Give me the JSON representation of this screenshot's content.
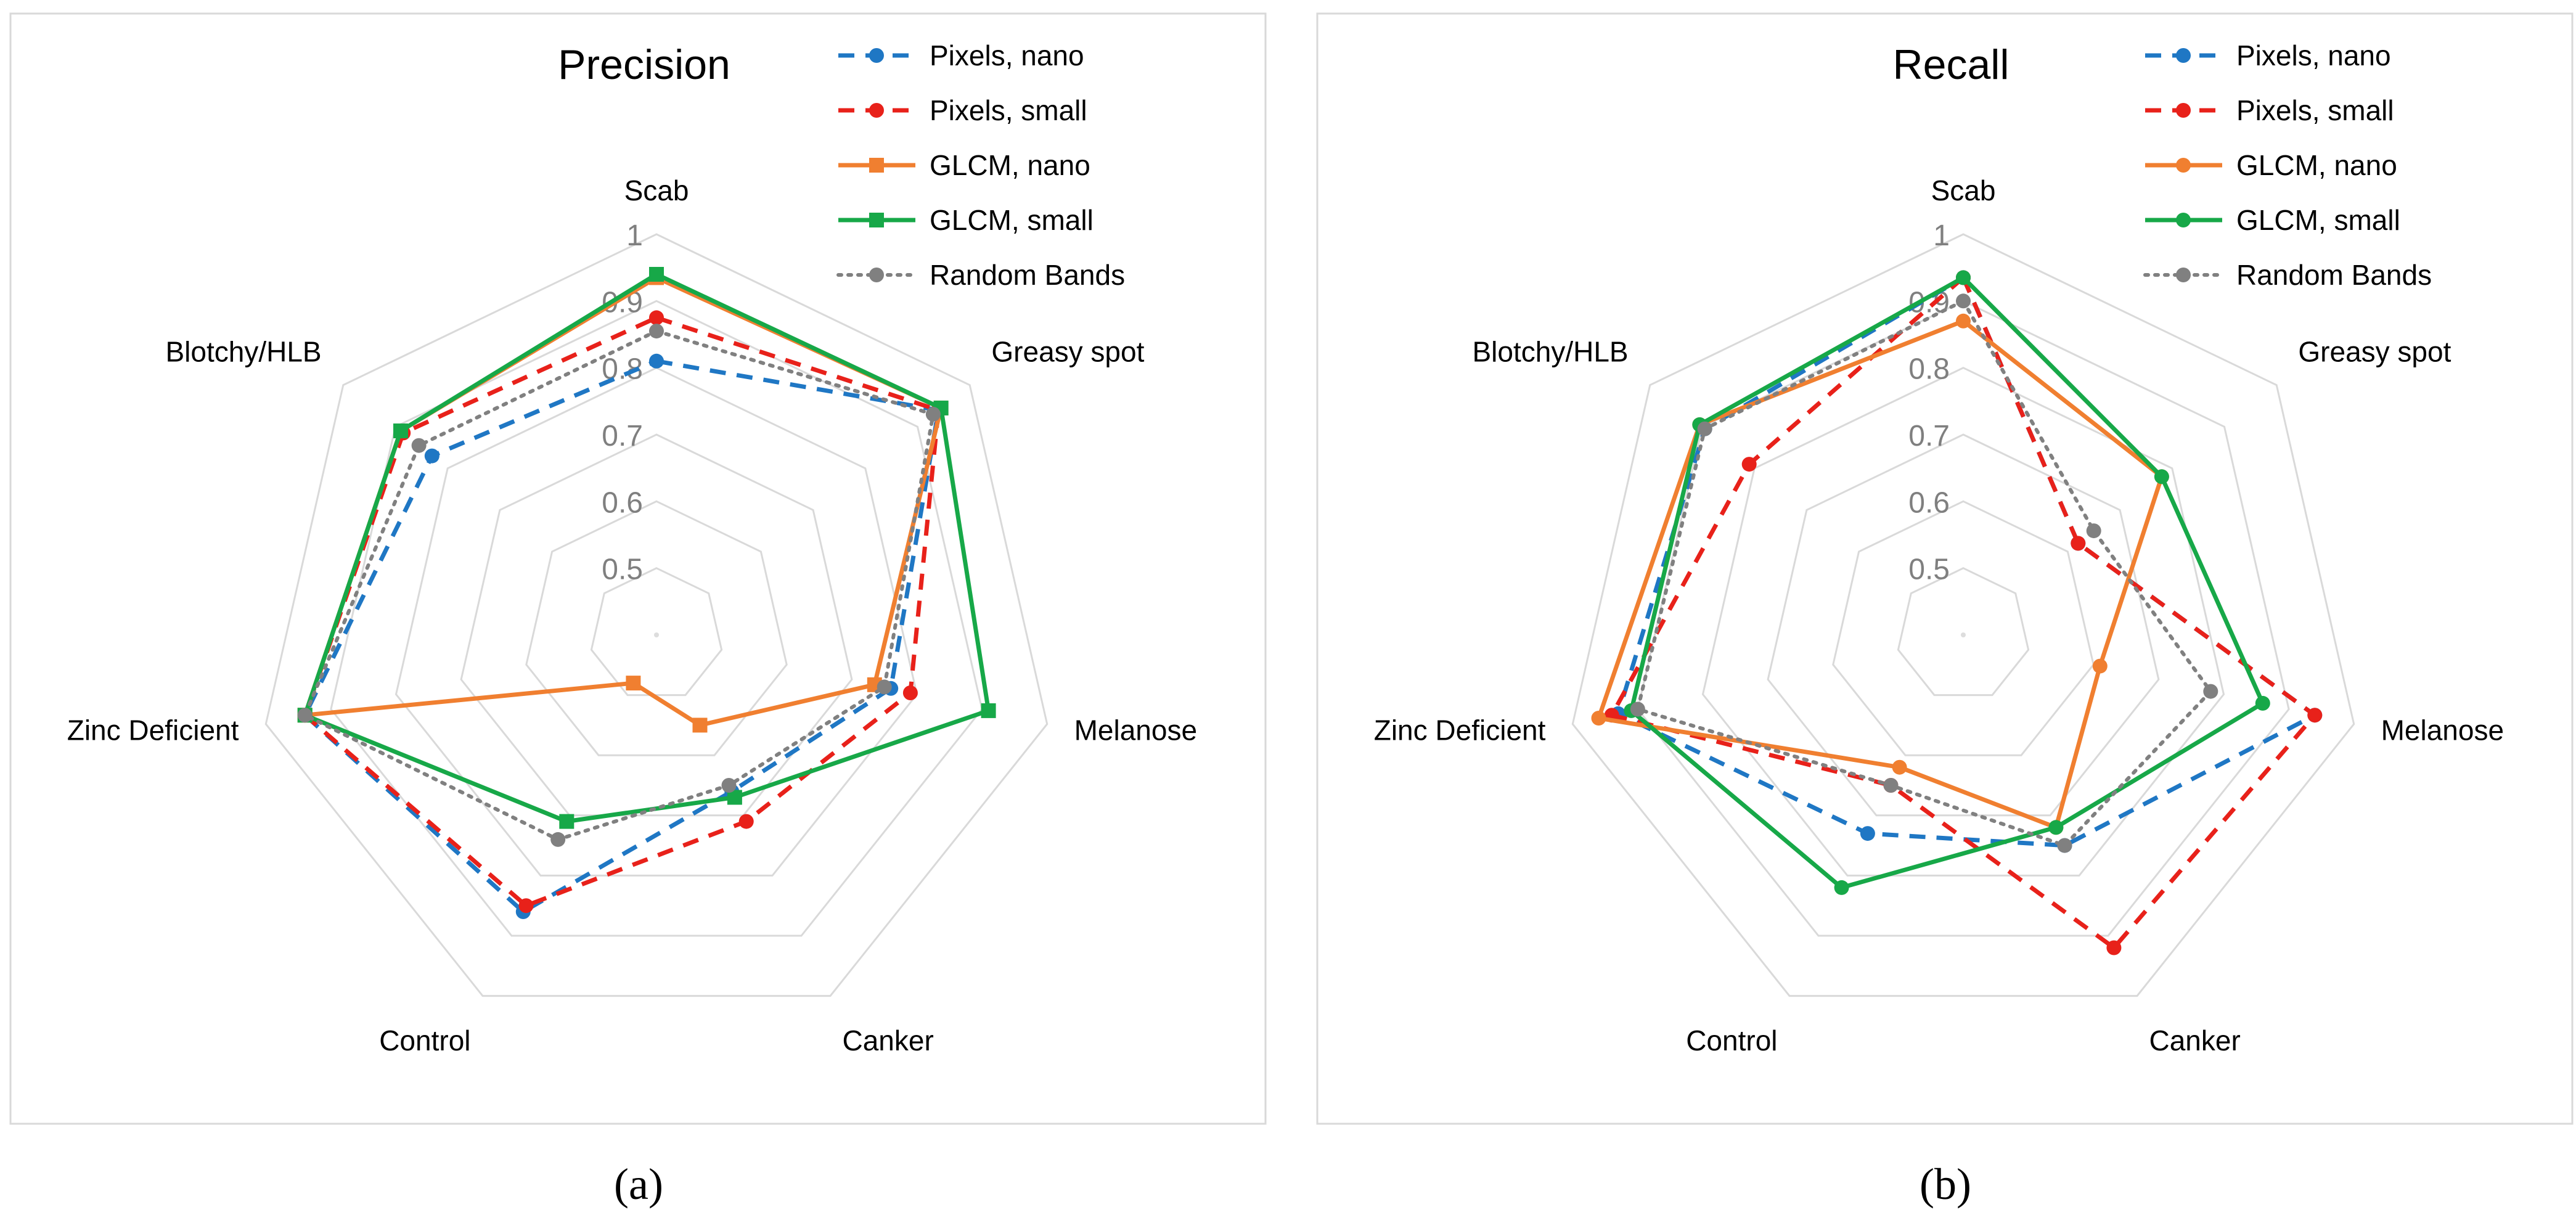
{
  "figure": {
    "panel_a_letter": "(a)",
    "panel_b_letter": "(b)"
  },
  "colors": {
    "pixels_nano": "#1F77C4",
    "pixels_small": "#E8211A",
    "glcm_nano": "#F07F30",
    "glcm_small": "#17A848",
    "random_bands": "#808080",
    "grid": "#D9D9D9"
  },
  "chart_data": [
    {
      "type": "radar",
      "panel": "(a)",
      "title": "Precision",
      "categories": [
        "Scab",
        "Greasy spot",
        "Melanose",
        "Canker",
        "Control",
        "Zinc Deficient",
        "Blotchy/HLB"
      ],
      "radial_ticks": [
        "1",
        "0.9",
        "0.8",
        "0.7",
        "0.6",
        "0.5"
      ],
      "rlim": [
        0.4,
        1.0
      ],
      "grid": true,
      "legend_position": "top-right",
      "series": [
        {
          "name": "Pixels, nano",
          "color": "#1F77C4",
          "line": "dashed",
          "marker": "circle",
          "values": [
            0.81,
            0.94,
            0.76,
            0.66,
            0.86,
            0.94,
            0.83
          ]
        },
        {
          "name": "Pixels, small",
          "color": "#E8211A",
          "line": "dashed",
          "marker": "circle",
          "values": [
            0.875,
            0.94,
            0.79,
            0.71,
            0.85,
            0.94,
            0.885
          ]
        },
        {
          "name": "GLCM, nano",
          "color": "#F07F30",
          "line": "solid",
          "marker": "square",
          "values": [
            0.935,
            0.945,
            0.735,
            0.55,
            0.48,
            0.94,
            0.89
          ]
        },
        {
          "name": "GLCM, small",
          "color": "#17A848",
          "line": "solid",
          "marker": "square",
          "values": [
            0.94,
            0.945,
            0.91,
            0.67,
            0.71,
            0.94,
            0.89
          ]
        },
        {
          "name": "Random Bands",
          "color": "#808080",
          "line": "dotted",
          "marker": "circle",
          "values": [
            0.855,
            0.93,
            0.75,
            0.65,
            0.74,
            0.94,
            0.855
          ]
        }
      ]
    },
    {
      "type": "radar",
      "panel": "(b)",
      "title": "Recall",
      "categories": [
        "Scab",
        "Greasy spot",
        "Melanose",
        "Canker",
        "Control",
        "Zinc Deficient",
        "Blotchy/HLB"
      ],
      "radial_ticks": [
        "1",
        "0.9",
        "0.8",
        "0.7",
        "0.6",
        "0.5"
      ],
      "rlim": [
        0.4,
        1.0
      ],
      "grid": true,
      "legend_position": "top-right",
      "series": [
        {
          "name": "Pixels, nano",
          "color": "#1F77C4",
          "line": "dashed",
          "marker": "circle",
          "values": [
            0.935,
            0.62,
            0.94,
            0.75,
            0.73,
            0.93,
            0.895
          ]
        },
        {
          "name": "Pixels, small",
          "color": "#E8211A",
          "line": "dashed",
          "marker": "circle",
          "values": [
            0.935,
            0.62,
            0.94,
            0.92,
            0.65,
            0.94,
            0.81
          ]
        },
        {
          "name": "GLCM, nano",
          "color": "#F07F30",
          "line": "solid",
          "marker": "circle",
          "values": [
            0.87,
            0.78,
            0.61,
            0.72,
            0.62,
            0.96,
            0.905
          ]
        },
        {
          "name": "GLCM, small",
          "color": "#17A848",
          "line": "solid",
          "marker": "circle",
          "values": [
            0.935,
            0.78,
            0.86,
            0.72,
            0.82,
            0.91,
            0.905
          ]
        },
        {
          "name": "Random Bands",
          "color": "#808080",
          "line": "dotted",
          "marker": "circle",
          "values": [
            0.9,
            0.65,
            0.78,
            0.75,
            0.65,
            0.9,
            0.895
          ]
        }
      ]
    }
  ]
}
